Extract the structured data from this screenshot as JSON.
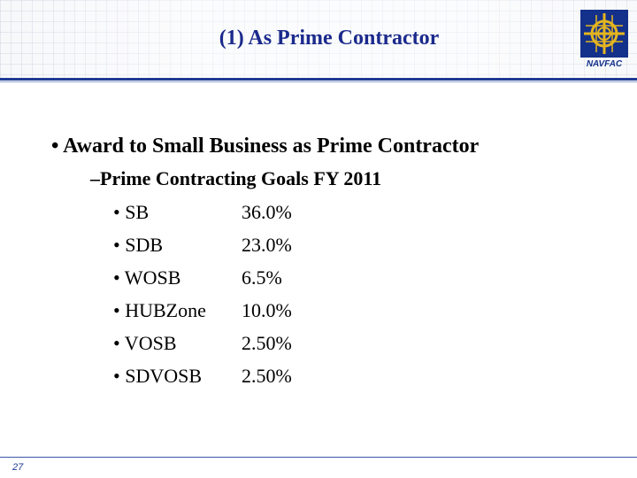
{
  "slide": {
    "title": "(1) As Prime Contractor",
    "logo_text": "NAVFAC",
    "bullet_level1": "• Award to Small Business as Prime Contractor",
    "bullet_level2": "–Prime Contracting Goals FY 2011",
    "goals": [
      {
        "name": "• SB",
        "value": "36.0%"
      },
      {
        "name": "• SDB",
        "value": "23.0%"
      },
      {
        "name": "• WOSB",
        "value": "6.5%"
      },
      {
        "name": "• HUBZone",
        "value": "10.0%"
      },
      {
        "name": "• VOSB",
        "value": "2.50%"
      },
      {
        "name": "• SDVOSB",
        "value": "2.50%"
      }
    ],
    "page_number": "27"
  },
  "colors": {
    "title": "#1b2a8c",
    "accent_rule": "#1f3a93",
    "logo_blue": "#13308a",
    "logo_gold": "#e5b51f"
  }
}
